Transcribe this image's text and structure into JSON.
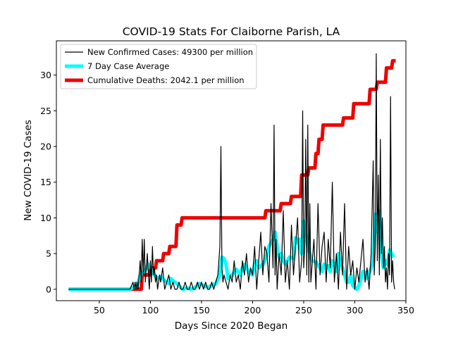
{
  "chart_data": {
    "type": "line",
    "title": "COVID-19 Stats For Claiborne Parish, LA",
    "xlabel": "Days Since 2020 Began",
    "ylabel": "New COVID-19 Cases",
    "xlim": [
      8,
      350
    ],
    "ylim": [
      -1.6,
      34.8
    ],
    "xticks": [
      50,
      100,
      150,
      200,
      250,
      300,
      350
    ],
    "yticks": [
      0,
      5,
      10,
      15,
      20,
      25,
      30
    ],
    "legend_position": "top-left",
    "grid": false,
    "series": [
      {
        "name": "New Confirmed Cases: 49300 per million",
        "color": "#000000",
        "x": [
          20,
          80,
          83,
          84,
          85,
          86,
          87,
          88,
          89,
          90,
          91,
          92,
          93,
          94,
          95,
          96,
          97,
          98,
          99,
          100,
          101,
          102,
          103,
          104,
          105,
          106,
          107,
          108,
          109,
          110,
          112,
          114,
          116,
          118,
          120,
          122,
          124,
          126,
          128,
          130,
          132,
          134,
          136,
          138,
          140,
          142,
          144,
          146,
          148,
          150,
          152,
          154,
          156,
          158,
          160,
          162,
          164,
          166,
          168,
          169,
          170,
          171,
          172,
          174,
          176,
          178,
          180,
          182,
          184,
          186,
          188,
          190,
          192,
          194,
          196,
          198,
          200,
          202,
          204,
          206,
          208,
          210,
          212,
          214,
          216,
          218,
          220,
          221,
          222,
          223,
          224,
          226,
          228,
          230,
          232,
          234,
          236,
          238,
          240,
          242,
          244,
          246,
          248,
          249,
          250,
          251,
          252,
          253,
          254,
          255,
          256,
          257,
          258,
          260,
          262,
          264,
          266,
          268,
          270,
          272,
          274,
          276,
          278,
          280,
          282,
          284,
          286,
          288,
          290,
          292,
          294,
          296,
          298,
          300,
          302,
          304,
          306,
          308,
          310,
          312,
          314,
          316,
          318,
          319,
          320,
          321,
          322,
          323,
          324,
          325,
          326,
          327,
          328,
          329,
          330,
          331,
          332,
          333,
          334,
          335,
          336,
          337,
          338,
          339
        ],
        "values": [
          0,
          0,
          1,
          0,
          1,
          0,
          1,
          0,
          2,
          4,
          1,
          7,
          2,
          7,
          1,
          3,
          5,
          2,
          0,
          4,
          1,
          6,
          2,
          3,
          1,
          2,
          0,
          1,
          2,
          1,
          3,
          0,
          1,
          2,
          0,
          1,
          0,
          0,
          1,
          0,
          0,
          1,
          0,
          0,
          1,
          0,
          0,
          1,
          0,
          1,
          0,
          1,
          0,
          0,
          1,
          0,
          1,
          2,
          6,
          20,
          3,
          1,
          2,
          1,
          0,
          2,
          1,
          4,
          1,
          2,
          0,
          4,
          2,
          5,
          1,
          3,
          2,
          6,
          0,
          4,
          8,
          2,
          6,
          5,
          1,
          12,
          3,
          23,
          2,
          7,
          0,
          5,
          2,
          11,
          1,
          4,
          0,
          9,
          2,
          6,
          10,
          1,
          4,
          25,
          3,
          6,
          21,
          2,
          23,
          1,
          12,
          1,
          3,
          7,
          0,
          12,
          2,
          6,
          8,
          1,
          7,
          3,
          15,
          1,
          5,
          0,
          8,
          2,
          12,
          0,
          6,
          2,
          4,
          0,
          3,
          1,
          4,
          7,
          1,
          3,
          0,
          5,
          18,
          2,
          6,
          33,
          4,
          16,
          2,
          21,
          5,
          10,
          3,
          6,
          1,
          3,
          0,
          5,
          2,
          27,
          1,
          4,
          1,
          0
        ]
      },
      {
        "name": "7 Day Case Average",
        "color": "#00ffff",
        "x": [
          20,
          80,
          86,
          88,
          90,
          92,
          94,
          96,
          98,
          100,
          104,
          106,
          110,
          112,
          114,
          116,
          118,
          120,
          124,
          126,
          130,
          132,
          136,
          140,
          144,
          148,
          152,
          156,
          160,
          164,
          168,
          170,
          172,
          174,
          176,
          180,
          184,
          188,
          190,
          192,
          196,
          200,
          202,
          204,
          206,
          210,
          212,
          216,
          220,
          222,
          224,
          226,
          228,
          230,
          232,
          236,
          240,
          242,
          244,
          246,
          248,
          250,
          252,
          254,
          256,
          258,
          262,
          266,
          268,
          270,
          272,
          274,
          276,
          278,
          280,
          282,
          284,
          286,
          288,
          290,
          292,
          294,
          296,
          298,
          300,
          302,
          304,
          306,
          308,
          310,
          312,
          316,
          318,
          320,
          322,
          324,
          326,
          328,
          330,
          332,
          334,
          336,
          338
        ],
        "values": [
          0,
          0,
          0.5,
          1,
          2,
          2.3,
          2.5,
          3,
          3.5,
          3,
          2,
          1.5,
          1.8,
          1.5,
          1.2,
          1,
          0.8,
          1.5,
          1,
          0.8,
          0.2,
          0,
          0.2,
          0,
          0.3,
          0.8,
          0.5,
          0.3,
          0.5,
          0.8,
          2,
          4.5,
          4.3,
          3.5,
          1.5,
          2,
          2.8,
          2,
          3,
          3.5,
          2.5,
          2,
          3.5,
          4,
          3,
          3.5,
          4,
          6,
          7,
          8,
          6,
          4.5,
          5,
          4,
          3.5,
          4.5,
          4.3,
          7.2,
          6.5,
          7,
          5,
          9.5,
          8,
          6,
          5,
          4,
          3.8,
          3,
          2.5,
          3.5,
          3,
          3.3,
          2.5,
          4,
          3.5,
          2.5,
          5,
          3.5,
          3,
          2,
          1,
          1,
          2,
          0.5,
          0.2,
          0,
          0.5,
          1.5,
          2.5,
          2.3,
          1.5,
          3,
          4,
          10.5,
          8,
          11,
          5,
          3,
          4,
          3.5,
          5.5,
          5,
          4.5
        ]
      },
      {
        "name": "Cumulative Deaths: 2042.1 per million",
        "color": "#ee0000",
        "x": [
          20,
          91,
          92,
          99,
          100,
          105,
          106,
          112,
          113,
          118,
          119,
          125,
          126,
          130,
          131,
          212,
          213,
          227,
          228,
          237,
          238,
          247,
          248,
          254,
          255,
          261,
          262,
          264,
          265,
          268,
          269,
          288,
          289,
          298,
          299,
          314,
          315,
          321,
          322,
          330,
          331,
          336,
          337,
          340
        ],
        "values": [
          0,
          0,
          2,
          2,
          3,
          3,
          4,
          4,
          5,
          5,
          6,
          6,
          9,
          9,
          10,
          10,
          11,
          11,
          12,
          12,
          13,
          13,
          16,
          16,
          17,
          17,
          19,
          19,
          21,
          21,
          23,
          23,
          24,
          24,
          26,
          26,
          28,
          28,
          29,
          29,
          31,
          31,
          32,
          32
        ]
      }
    ]
  }
}
